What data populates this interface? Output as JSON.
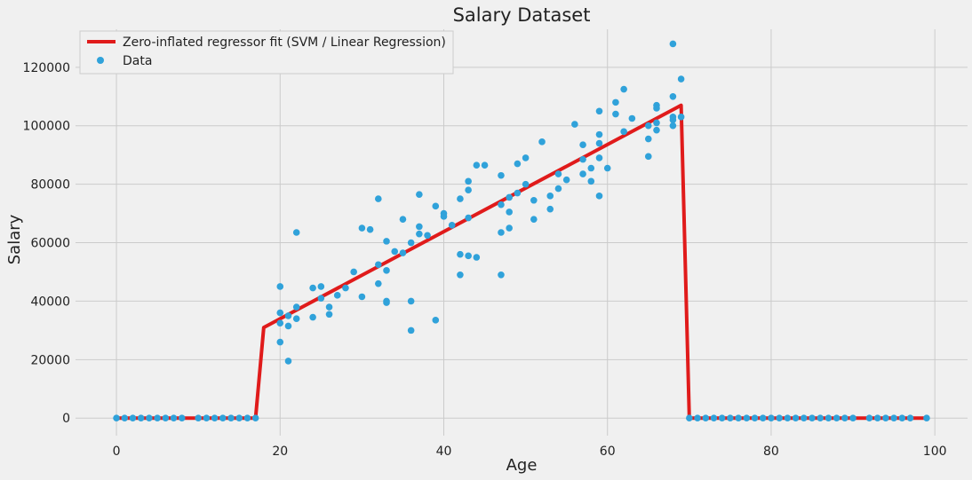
{
  "chart_data": {
    "type": "scatter",
    "title": "Salary Dataset",
    "xlabel": "Age",
    "ylabel": "Salary",
    "xlim": [
      -5,
      104
    ],
    "ylim": [
      -6000,
      133000
    ],
    "x_ticks": [
      0,
      20,
      40,
      60,
      80,
      100
    ],
    "y_ticks": [
      0,
      20000,
      40000,
      60000,
      80000,
      100000,
      120000
    ],
    "grid": true,
    "legend_position": "top-left",
    "colors": {
      "fit": "#e01b1b",
      "data": "#30a2da",
      "background": "#f0f0f0",
      "grid": "#cbcbcb"
    },
    "series": [
      {
        "name": "Zero-inflated regressor fit (SVM / Linear Regression)",
        "type": "line",
        "x": [
          0,
          17,
          18,
          69,
          70,
          99
        ],
        "y": [
          0,
          0,
          31000,
          107000,
          0,
          0
        ]
      },
      {
        "name": "Data",
        "type": "scatter",
        "points": [
          [
            0,
            0
          ],
          [
            1,
            0
          ],
          [
            2,
            0
          ],
          [
            3,
            0
          ],
          [
            4,
            0
          ],
          [
            5,
            0
          ],
          [
            6,
            0
          ],
          [
            7,
            0
          ],
          [
            8,
            0
          ],
          [
            10,
            0
          ],
          [
            11,
            0
          ],
          [
            12,
            0
          ],
          [
            13,
            0
          ],
          [
            14,
            0
          ],
          [
            15,
            0
          ],
          [
            16,
            0
          ],
          [
            17,
            0
          ],
          [
            20,
            45000
          ],
          [
            20,
            36000
          ],
          [
            20,
            32500
          ],
          [
            20,
            26000
          ],
          [
            21,
            19500
          ],
          [
            21,
            31500
          ],
          [
            21,
            35000
          ],
          [
            22,
            63500
          ],
          [
            22,
            38000
          ],
          [
            22,
            34000
          ],
          [
            24,
            44500
          ],
          [
            24,
            34500
          ],
          [
            25,
            45000
          ],
          [
            25,
            41000
          ],
          [
            26,
            38000
          ],
          [
            26,
            35500
          ],
          [
            27,
            42000
          ],
          [
            28,
            44500
          ],
          [
            29,
            50000
          ],
          [
            30,
            65000
          ],
          [
            30,
            41500
          ],
          [
            31,
            64500
          ],
          [
            32,
            75000
          ],
          [
            32,
            52500
          ],
          [
            32,
            46000
          ],
          [
            33,
            60500
          ],
          [
            33,
            50500
          ],
          [
            33,
            40000
          ],
          [
            33,
            39500
          ],
          [
            34,
            57000
          ],
          [
            35,
            68000
          ],
          [
            35,
            56500
          ],
          [
            36,
            60000
          ],
          [
            36,
            40000
          ],
          [
            36,
            30000
          ],
          [
            37,
            76500
          ],
          [
            37,
            65500
          ],
          [
            37,
            63000
          ],
          [
            38,
            62500
          ],
          [
            39,
            72500
          ],
          [
            39,
            33500
          ],
          [
            40,
            70000
          ],
          [
            40,
            69000
          ],
          [
            41,
            66000
          ],
          [
            42,
            75000
          ],
          [
            42,
            56000
          ],
          [
            42,
            49000
          ],
          [
            43,
            81000
          ],
          [
            43,
            78000
          ],
          [
            43,
            68500
          ],
          [
            43,
            55500
          ],
          [
            44,
            86500
          ],
          [
            44,
            55000
          ],
          [
            45,
            86500
          ],
          [
            47,
            83000
          ],
          [
            47,
            73000
          ],
          [
            47,
            63500
          ],
          [
            47,
            49000
          ],
          [
            48,
            75500
          ],
          [
            48,
            70500
          ],
          [
            48,
            65000
          ],
          [
            49,
            87000
          ],
          [
            49,
            77000
          ],
          [
            50,
            89000
          ],
          [
            50,
            80000
          ],
          [
            51,
            74500
          ],
          [
            51,
            68000
          ],
          [
            52,
            94500
          ],
          [
            53,
            76000
          ],
          [
            53,
            71500
          ],
          [
            54,
            83500
          ],
          [
            54,
            78500
          ],
          [
            55,
            81500
          ],
          [
            56,
            100500
          ],
          [
            57,
            93500
          ],
          [
            57,
            88500
          ],
          [
            57,
            83500
          ],
          [
            58,
            85500
          ],
          [
            58,
            81000
          ],
          [
            59,
            105000
          ],
          [
            59,
            97000
          ],
          [
            59,
            94000
          ],
          [
            59,
            89000
          ],
          [
            59,
            76000
          ],
          [
            60,
            85500
          ],
          [
            61,
            108000
          ],
          [
            61,
            104000
          ],
          [
            62,
            112500
          ],
          [
            62,
            98000
          ],
          [
            63,
            102500
          ],
          [
            65,
            100000
          ],
          [
            65,
            95500
          ],
          [
            65,
            89500
          ],
          [
            66,
            107000
          ],
          [
            66,
            106000
          ],
          [
            66,
            101000
          ],
          [
            66,
            98500
          ],
          [
            68,
            128000
          ],
          [
            68,
            110000
          ],
          [
            68,
            103000
          ],
          [
            68,
            102000
          ],
          [
            68,
            100000
          ],
          [
            69,
            116000
          ],
          [
            69,
            103000
          ],
          [
            70,
            0
          ],
          [
            71,
            0
          ],
          [
            72,
            0
          ],
          [
            73,
            0
          ],
          [
            74,
            0
          ],
          [
            75,
            0
          ],
          [
            76,
            0
          ],
          [
            77,
            0
          ],
          [
            78,
            0
          ],
          [
            79,
            0
          ],
          [
            80,
            0
          ],
          [
            81,
            0
          ],
          [
            82,
            0
          ],
          [
            83,
            0
          ],
          [
            84,
            0
          ],
          [
            85,
            0
          ],
          [
            86,
            0
          ],
          [
            87,
            0
          ],
          [
            88,
            0
          ],
          [
            89,
            0
          ],
          [
            90,
            0
          ],
          [
            92,
            0
          ],
          [
            93,
            0
          ],
          [
            94,
            0
          ],
          [
            95,
            0
          ],
          [
            96,
            0
          ],
          [
            97,
            0
          ],
          [
            99,
            0
          ]
        ]
      }
    ]
  }
}
